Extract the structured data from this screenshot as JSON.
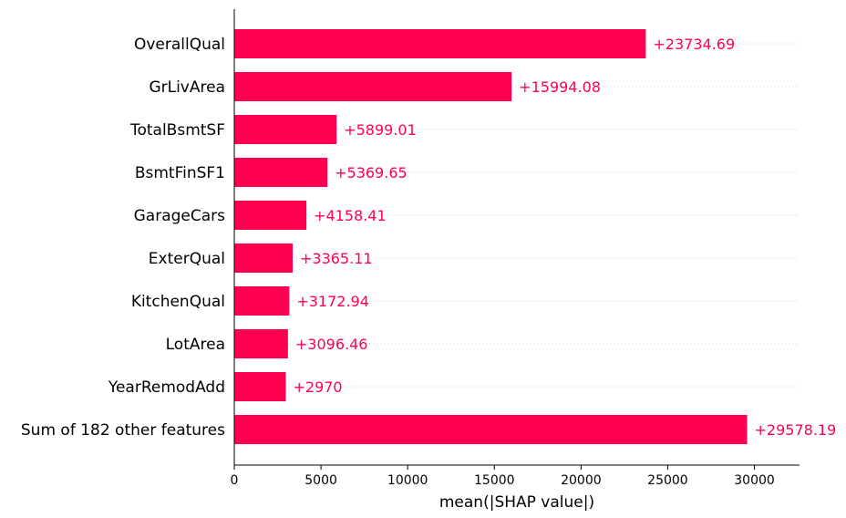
{
  "chart_data": {
    "type": "bar",
    "orientation": "horizontal",
    "categories": [
      "OverallQual",
      "GrLivArea",
      "TotalBsmtSF",
      "BsmtFinSF1",
      "GarageCars",
      "ExterQual",
      "KitchenQual",
      "LotArea",
      "YearRemodAdd",
      "Sum of 182 other features"
    ],
    "values": [
      23734.69,
      15994.08,
      5899.01,
      5369.65,
      4158.41,
      3365.11,
      3172.94,
      3096.46,
      2970,
      29578.19
    ],
    "value_labels": [
      "+23734.69",
      "+15994.08",
      "+5899.01",
      "+5369.65",
      "+4158.41",
      "+3365.11",
      "+3172.94",
      "+3096.46",
      "+2970",
      "+29578.19"
    ],
    "xlabel": "mean(|SHAP value|)",
    "xticks": [
      0,
      5000,
      10000,
      15000,
      20000,
      25000,
      30000
    ],
    "xtick_labels": [
      "0",
      "5000",
      "10000",
      "15000",
      "20000",
      "25000",
      "30000"
    ],
    "xlim": [
      0,
      32600
    ],
    "bar_color": "#ff0051",
    "label_color": "#ff0051",
    "grid": "dotted row guides"
  }
}
